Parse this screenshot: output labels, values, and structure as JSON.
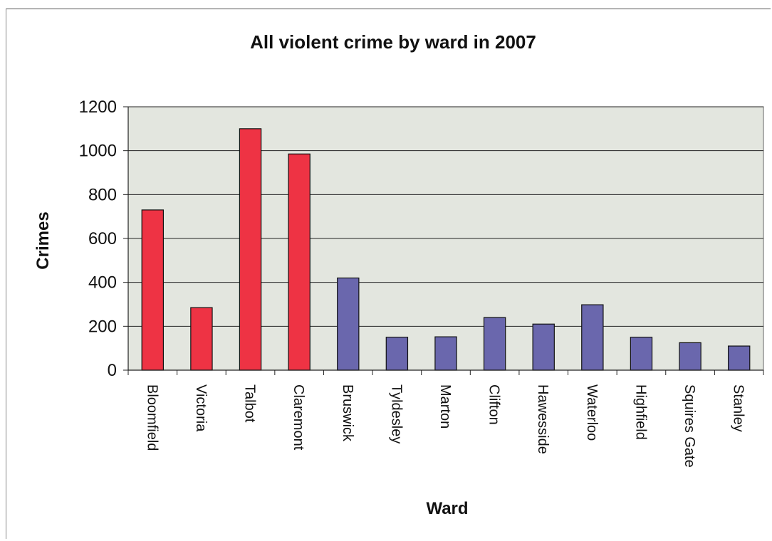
{
  "chart_data": {
    "type": "bar",
    "title": "All violent crime by ward in 2007",
    "xlabel": "Ward",
    "ylabel": "Crimes",
    "ylim": [
      0,
      1200
    ],
    "yticks": [
      0,
      200,
      400,
      600,
      800,
      1000,
      1200
    ],
    "grid": true,
    "categories": [
      "Bloomfield",
      "Victoria",
      "Talbot",
      "Claremont",
      "Bruswick",
      "Tyldesley",
      "Marton",
      "Clifton",
      "Hawesside",
      "Waterloo",
      "Highfield",
      "Squires Gate",
      "Stanley"
    ],
    "values": [
      730,
      285,
      1100,
      985,
      420,
      150,
      152,
      240,
      210,
      298,
      150,
      125,
      110
    ],
    "bar_colors": [
      "#ee3344",
      "#ee3344",
      "#ee3344",
      "#ee3344",
      "#6a67ad",
      "#6a67ad",
      "#6a67ad",
      "#6a67ad",
      "#6a67ad",
      "#6a67ad",
      "#6a67ad",
      "#6a67ad",
      "#6a67ad"
    ],
    "plot_background": "#e3e6df"
  }
}
